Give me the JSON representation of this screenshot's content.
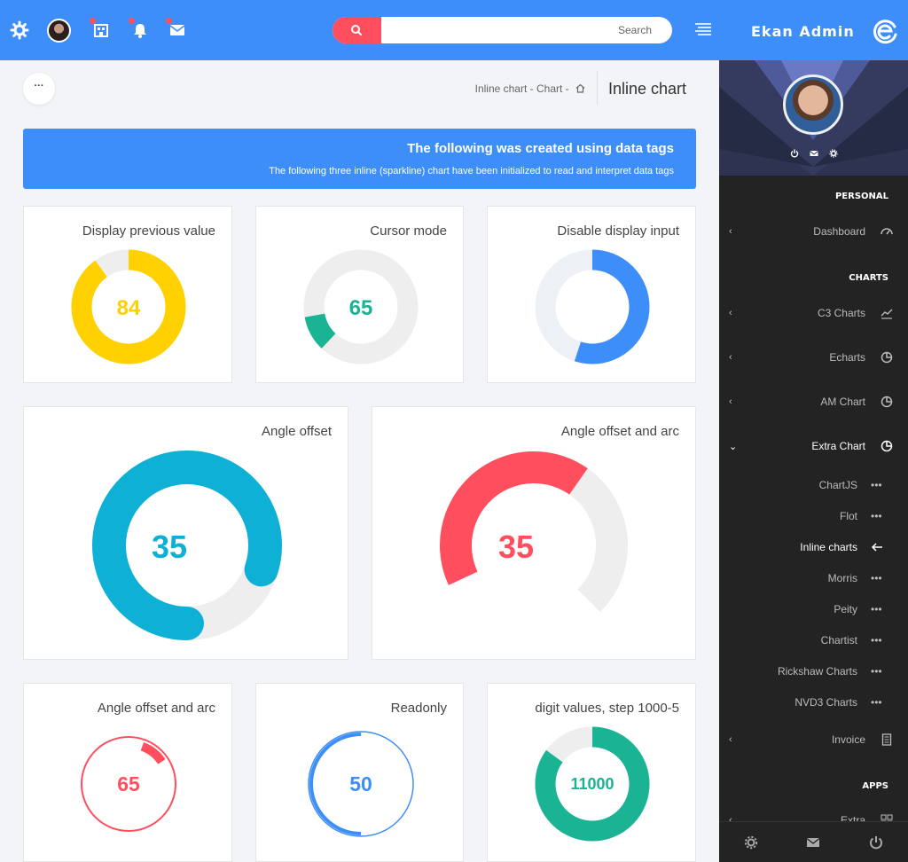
{
  "header": {
    "brand_title": "Ekan Admin",
    "search_placeholder": "Search",
    "colors": {
      "primary": "#3d8ef8",
      "accent": "#ff4f5e"
    },
    "icons": [
      "gear-icon",
      "avatar",
      "building-icon",
      "bell-icon",
      "mail-icon",
      "search-icon",
      "hamburger-icon",
      "brand-logo-icon"
    ]
  },
  "sidebar": {
    "sections": {
      "personal": "PERSONAL",
      "charts": "CHARTS",
      "apps": "APPS"
    },
    "items": {
      "dashboard": "Dashboard",
      "c3": "C3 Charts",
      "echarts": "Echarts",
      "amchart": "AM Chart",
      "extra_chart": "Extra Chart",
      "invoice": "Invoice",
      "extra": "Extra"
    },
    "sub_items": {
      "chartjs": "ChartJS",
      "flot": "Flot",
      "inline": "Inline charts",
      "morris": "Morris",
      "peity": "Peity",
      "chartist": "Chartist",
      "rickshaw": "Rickshaw Charts",
      "nvd3": "NVD3 Charts"
    }
  },
  "content": {
    "dots_label": "···",
    "breadcrumb": "Inline chart -   Chart -",
    "page_title": "Inline chart",
    "banner_title": "The following was created using data tags",
    "banner_text": "The following three inline (sparkline) chart have been initialized to read and interpret data tags"
  },
  "knobs": [
    {
      "title": "Display previous value",
      "value": "84",
      "fraction": 0.9,
      "color": "#ffd100"
    },
    {
      "title": "Cursor mode",
      "value": "65",
      "fraction": 0.1,
      "color": "#1ab394"
    },
    {
      "title": "Disable display input",
      "value": "",
      "fraction": 0.55,
      "color": "#3d8ef8"
    },
    {
      "title": "Angle offset",
      "value": "35",
      "fraction": 0.8,
      "color": "#0fb0d6"
    },
    {
      "title": "Angle offset and arc",
      "value": "35",
      "fraction": 0.6,
      "color": "#ff4f5e"
    },
    {
      "title": "Angle offset and arc",
      "value": "65",
      "fraction": 0.1,
      "color": "#ff4f5e"
    },
    {
      "title": "Readonly",
      "value": "50",
      "fraction": 0.5,
      "color": "#3d8ef8"
    },
    {
      "title": "digit values, step 1000-5",
      "value": "11000",
      "fraction": 0.85,
      "color": "#1ab394"
    }
  ]
}
